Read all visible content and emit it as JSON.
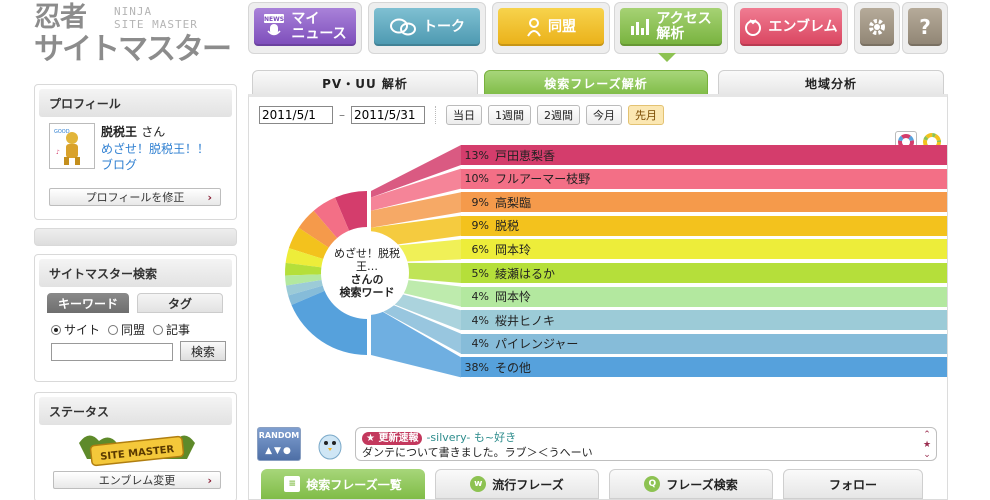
{
  "logo": {
    "main_line1": "忍者",
    "main_line2": "サイトマスター",
    "sub_line1": "NINJA",
    "sub_line2": "SITE MASTER"
  },
  "nav": {
    "items": [
      {
        "label_1": "マイ",
        "label_2": "ニュース",
        "icon": "mic-icon",
        "color": "#8f62c6"
      },
      {
        "label_1": "トーク",
        "label_2": "",
        "icon": "chat-icon",
        "color": "#5fa9bf"
      },
      {
        "label_1": "同盟",
        "label_2": "",
        "icon": "person-icon",
        "color": "#f2bf2e"
      },
      {
        "label_1": "アクセス",
        "label_2": "解析",
        "icon": "bar-chart-icon",
        "color": "#8dc252"
      },
      {
        "label_1": "エンブレム",
        "label_2": "",
        "icon": "emblem-icon",
        "color": "#e9607a"
      }
    ],
    "settings_icon": "gear-icon",
    "help_label": "?"
  },
  "sidebar": {
    "profile": {
      "title": "プロフィール",
      "name": "脱税王",
      "name_suffix": "さん",
      "link1": "めざせ！脱税王！！",
      "link2": "ブログ",
      "edit_button": "プロフィールを修正"
    },
    "search": {
      "title": "サイトマスター検索",
      "tab_keyword": "キーワード",
      "tab_tag": "タグ",
      "radio_site": "サイト",
      "radio_alliance": "同盟",
      "radio_article": "記事",
      "input_value": "",
      "search_button": "検索"
    },
    "status": {
      "title": "ステータス",
      "badge_text": "SITE MASTER",
      "emblem_button": "エンブレム変更"
    }
  },
  "subtabs": [
    "PV・UU 解析",
    "検索フレーズ解析",
    "地域分析"
  ],
  "filters": {
    "date_from": "2011/5/1",
    "date_to": "2011/5/31",
    "dash": "–",
    "periods": [
      "当日",
      "1週間",
      "2週間",
      "今月",
      "先月"
    ],
    "active_period": "先月"
  },
  "chart_data": {
    "type": "bar",
    "center_title": "めざせ！脱税王…",
    "center_sub1": "さんの",
    "center_sub2": "検索ワード",
    "categories": [
      "戸田恵梨香",
      "フルアーマー枝野",
      "高梨臨",
      "脱税",
      "岡本玲",
      "綾瀬はるか",
      "岡本怜",
      "桜井ヒノキ",
      "パイレンジャー",
      "その他"
    ],
    "values": [
      13,
      10,
      9,
      9,
      6,
      5,
      4,
      4,
      4,
      38
    ],
    "labels": [
      "13%",
      "10%",
      "9%",
      "9%",
      "6%",
      "5%",
      "4%",
      "4%",
      "4%",
      "38%"
    ],
    "colors": [
      "#d43d6c",
      "#f36f86",
      "#f59a4b",
      "#f3c21d",
      "#eded3a",
      "#b5df3a",
      "#b3e89f",
      "#9ccbd7",
      "#86bcd9",
      "#56a1dc"
    ]
  },
  "news": {
    "random_label": "RANDOM",
    "badge": "更新速報",
    "author": "-silvery- も~好き",
    "message": "ダンテについて書きました。ラブ＞＜うへーい"
  },
  "bottom_tabs": [
    {
      "label": "検索フレーズ一覧",
      "icon": "list-icon"
    },
    {
      "label": "流行フレーズ",
      "icon": "www-icon"
    },
    {
      "label": "フレーズ検索",
      "icon": "search-phrase-icon"
    },
    {
      "label": "フォロー",
      "icon": ""
    }
  ]
}
